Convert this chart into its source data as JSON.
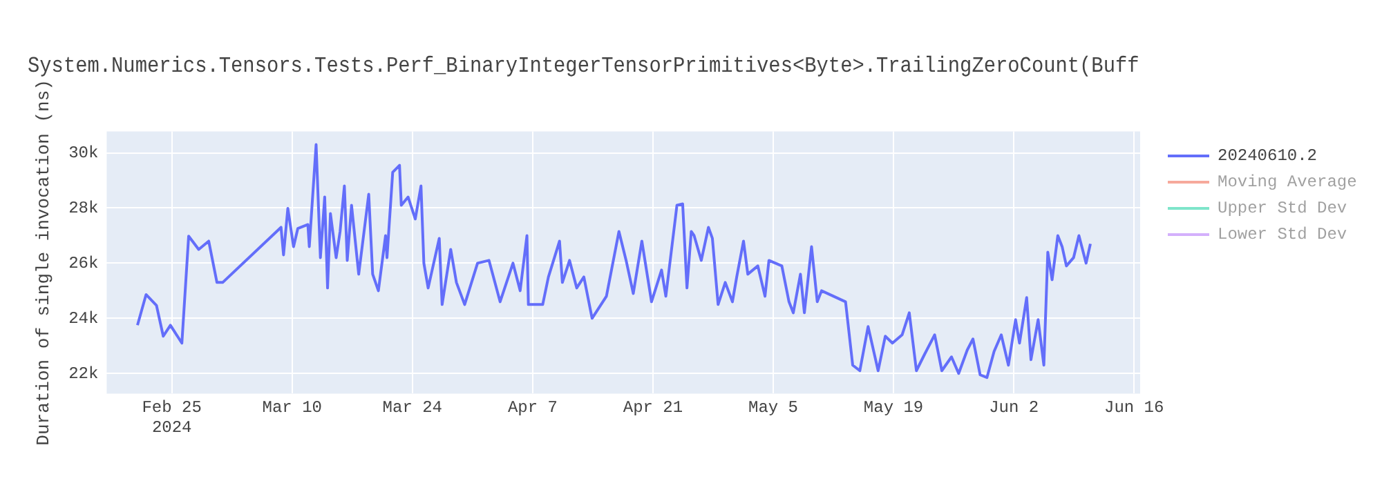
{
  "chart_data": {
    "type": "line",
    "title": "System.Numerics.Tensors.Tests.Perf_BinaryIntegerTensorPrimitives<Byte>.TrailingZeroCount(Buff",
    "ylabel": "Duration of single invocation (ns)",
    "x": [
      "2024-02-21T00:00",
      "2024-02-22T00:00",
      "2024-02-23T05:00",
      "2024-02-24T00:00",
      "2024-02-24T20:00",
      "2024-02-26T04:00",
      "2024-02-26T23:00",
      "2024-02-28T03:00",
      "2024-02-29T07:00",
      "2024-03-01T06:00",
      "2024-03-01T22:00",
      "2024-03-08T17:00",
      "2024-03-09T00:00",
      "2024-03-09T12:00",
      "2024-03-10T04:00",
      "2024-03-10T16:00",
      "2024-03-11T20:00",
      "2024-03-12T00:00",
      "2024-03-12T19:00",
      "2024-03-13T07:00",
      "2024-03-13T19:00",
      "2024-03-14T03:00",
      "2024-03-14T11:00",
      "2024-03-15T03:00",
      "2024-03-15T14:00",
      "2024-03-16T02:00",
      "2024-03-16T10:00",
      "2024-03-16T22:00",
      "2024-03-17T18:00",
      "2024-03-18T22:00",
      "2024-03-19T09:00",
      "2024-03-20T01:00",
      "2024-03-20T21:00",
      "2024-03-21T01:00",
      "2024-03-21T17:00",
      "2024-03-22T12:00",
      "2024-03-22T17:00",
      "2024-03-23T12:00",
      "2024-03-24T08:00",
      "2024-03-25T00:00",
      "2024-03-25T08:00",
      "2024-03-25T20:00",
      "2024-03-27T03:00",
      "2024-03-27T11:00",
      "2024-03-28T11:00",
      "2024-03-29T03:00",
      "2024-03-30T02:00",
      "2024-03-31T14:00",
      "2024-04-01T22:00",
      "2024-04-03T05:00",
      "2024-04-04T17:00",
      "2024-04-05T13:00",
      "2024-04-06T08:00",
      "2024-04-06T12:00",
      "2024-04-08T04:00",
      "2024-04-08T20:00",
      "2024-04-10T03:00",
      "2024-04-10T11:00",
      "2024-04-11T07:00",
      "2024-04-12T03:00",
      "2024-04-12T23:00",
      "2024-04-13T22:00",
      "2024-04-15T14:00",
      "2024-04-17T01:00",
      "2024-04-17T21:00",
      "2024-04-18T17:00",
      "2024-04-19T17:00",
      "2024-04-20T20:00",
      "2024-04-22T00:00",
      "2024-04-22T12:00",
      "2024-04-23T19:00",
      "2024-04-24T11:00",
      "2024-04-24T23:00",
      "2024-04-25T11:00",
      "2024-04-25T19:00",
      "2024-04-26T15:00",
      "2024-04-27T11:00",
      "2024-04-27T22:00",
      "2024-04-28T14:00",
      "2024-04-29T10:00",
      "2024-04-30T06:00",
      "2024-04-30T18:00",
      "2024-05-01T13:00",
      "2024-05-02T01:00",
      "2024-05-03T05:00",
      "2024-05-04T01:00",
      "2024-05-04T12:00",
      "2024-05-06T00:00",
      "2024-05-06T20:00",
      "2024-05-07T08:00",
      "2024-05-08T04:00",
      "2024-05-08T15:00",
      "2024-05-09T11:00",
      "2024-05-10T03:00",
      "2024-05-10T15:00",
      "2024-05-13T10:00",
      "2024-05-14T06:00",
      "2024-05-15T02:00",
      "2024-05-16T01:00",
      "2024-05-17T05:00",
      "2024-05-18T01:00",
      "2024-05-18T21:00",
      "2024-05-20T00:00",
      "2024-05-20T20:00",
      "2024-05-21T16:00",
      "2024-05-22T15:00",
      "2024-05-23T19:00",
      "2024-05-24T15:00",
      "2024-05-25T18:00",
      "2024-05-26T14:00",
      "2024-05-27T14:00",
      "2024-05-28T06:00",
      "2024-05-29T02:00",
      "2024-05-29T21:00",
      "2024-05-30T17:00",
      "2024-05-31T13:00",
      "2024-06-01T09:00",
      "2024-06-02T05:00",
      "2024-06-02T16:00",
      "2024-06-03T12:00",
      "2024-06-04T00:00",
      "2024-06-04T20:00",
      "2024-06-05T12:00",
      "2024-06-05T23:00",
      "2024-06-06T11:00",
      "2024-06-07T03:00",
      "2024-06-07T15:00",
      "2024-06-08T03:00",
      "2024-06-08T23:00",
      "2024-06-09T14:00",
      "2024-06-10T10:00",
      "2024-06-10T22:00"
    ],
    "series": [
      {
        "name": "20240610.2",
        "color": "#636efa",
        "values": [
          23750,
          24860,
          24470,
          23350,
          23750,
          23100,
          26980,
          26500,
          26800,
          25300,
          25300,
          27300,
          26300,
          27990,
          26600,
          27260,
          27400,
          26600,
          30300,
          26200,
          28400,
          25100,
          27800,
          26200,
          27150,
          28800,
          26100,
          28100,
          25600,
          28500,
          25600,
          25000,
          27000,
          26200,
          29300,
          29550,
          28100,
          28400,
          27600,
          28800,
          26000,
          25100,
          26900,
          24500,
          26500,
          25300,
          24500,
          26000,
          26100,
          24600,
          26000,
          25000,
          27000,
          24500,
          24500,
          25500,
          26800,
          25300,
          26100,
          25100,
          25500,
          24000,
          24800,
          27150,
          26100,
          24900,
          26800,
          24600,
          25750,
          24800,
          28100,
          28150,
          25100,
          27150,
          27000,
          26100,
          27300,
          26900,
          24500,
          25300,
          24600,
          25500,
          26800,
          25600,
          25900,
          24800,
          26100,
          25900,
          24600,
          24200,
          25600,
          24200,
          26600,
          24600,
          25000,
          24600,
          22300,
          22100,
          23700,
          22100,
          23350,
          23100,
          23400,
          24200,
          22100,
          22700,
          23400,
          22100,
          22600,
          22000,
          22850,
          23250,
          21950,
          21850,
          22800,
          23400,
          22300,
          23950,
          23100,
          24750,
          22500,
          23950,
          22300,
          26400,
          25400,
          27000,
          26600,
          25900,
          26200,
          27000,
          26000,
          26700
        ]
      },
      {
        "name": "Moving Average",
        "color": "#ef553b",
        "values": [
          null,
          null,
          null,
          null,
          null,
          null,
          null,
          null,
          null,
          null,
          null,
          null,
          null,
          null,
          null,
          null,
          null,
          null,
          null,
          null,
          null,
          null,
          null,
          null,
          null,
          null,
          null,
          null,
          null,
          null,
          null,
          null,
          null,
          null,
          null,
          null,
          null,
          null,
          null,
          null,
          null,
          null,
          null,
          null,
          null,
          null,
          null,
          null,
          null,
          null,
          null,
          null,
          null,
          null,
          null,
          null,
          null,
          null,
          null,
          null,
          null,
          null,
          null,
          null,
          null,
          null,
          null,
          null,
          null,
          null,
          null,
          null,
          null,
          null,
          null,
          null,
          null,
          null,
          null,
          null,
          null,
          null,
          null,
          null,
          null,
          null,
          null,
          null,
          null,
          null,
          null,
          null,
          null,
          null,
          null,
          null,
          null,
          null,
          null,
          null,
          null,
          null,
          null,
          null,
          null,
          null,
          null,
          null,
          null,
          null,
          null,
          null,
          null,
          null,
          null,
          null,
          null,
          null,
          null,
          null,
          null,
          null,
          null,
          null,
          null,
          null,
          null,
          null,
          null,
          null,
          null,
          null
        ]
      },
      {
        "name": "Upper Std Dev",
        "color": "#00cc96",
        "values": [
          null,
          null,
          null,
          null,
          null,
          null,
          null,
          null,
          null,
          null,
          null,
          null,
          null,
          null,
          null,
          null,
          null,
          null,
          null,
          null,
          null,
          null,
          null,
          null,
          null,
          null,
          null,
          null,
          null,
          null,
          null,
          null,
          null,
          null,
          null,
          null,
          null,
          null,
          null,
          null,
          null,
          null,
          null,
          null,
          null,
          null,
          null,
          null,
          null,
          null,
          null,
          null,
          null,
          null,
          null,
          null,
          null,
          null,
          null,
          null,
          null,
          null,
          null,
          null,
          null,
          null,
          null,
          null,
          null,
          null,
          null,
          null,
          null,
          null,
          null,
          null,
          null,
          null,
          null,
          null,
          null,
          null,
          null,
          null,
          null,
          null,
          null,
          null,
          null,
          null,
          null,
          null,
          null,
          null,
          null,
          null,
          null,
          null,
          null,
          null,
          null,
          null,
          null,
          null,
          null,
          null,
          null,
          null,
          null,
          null,
          null,
          null,
          null,
          null,
          null,
          null,
          null,
          null,
          null,
          null,
          null,
          null,
          null,
          null,
          null,
          null,
          null,
          null,
          null,
          null,
          null,
          null
        ]
      },
      {
        "name": "Lower Std Dev",
        "color": "#ab63fa",
        "values": [
          null,
          null,
          null,
          null,
          null,
          null,
          null,
          null,
          null,
          null,
          null,
          null,
          null,
          null,
          null,
          null,
          null,
          null,
          null,
          null,
          null,
          null,
          null,
          null,
          null,
          null,
          null,
          null,
          null,
          null,
          null,
          null,
          null,
          null,
          null,
          null,
          null,
          null,
          null,
          null,
          null,
          null,
          null,
          null,
          null,
          null,
          null,
          null,
          null,
          null,
          null,
          null,
          null,
          null,
          null,
          null,
          null,
          null,
          null,
          null,
          null,
          null,
          null,
          null,
          null,
          null,
          null,
          null,
          null,
          null,
          null,
          null,
          null,
          null,
          null,
          null,
          null,
          null,
          null,
          null,
          null,
          null,
          null,
          null,
          null,
          null,
          null,
          null,
          null,
          null,
          null,
          null,
          null,
          null,
          null,
          null,
          null,
          null,
          null,
          null,
          null,
          null,
          null,
          null,
          null,
          null,
          null,
          null,
          null,
          null,
          null,
          null,
          null,
          null,
          null,
          null,
          null,
          null,
          null,
          null,
          null,
          null,
          null,
          null,
          null,
          null,
          null,
          null,
          null,
          null,
          null,
          null
        ]
      }
    ],
    "xlim": [
      "2024-02-17T10:00",
      "2024-06-16T17:00"
    ],
    "xticks": [
      {
        "value": "2024-02-25",
        "label": "Feb 25\n2024"
      },
      {
        "value": "2024-03-10",
        "label": "Mar 10"
      },
      {
        "value": "2024-03-24",
        "label": "Mar 24"
      },
      {
        "value": "2024-04-07",
        "label": "Apr 7"
      },
      {
        "value": "2024-04-21",
        "label": "Apr 21"
      },
      {
        "value": "2024-05-05",
        "label": "May 5"
      },
      {
        "value": "2024-05-19",
        "label": "May 19"
      },
      {
        "value": "2024-06-02",
        "label": "Jun 2"
      },
      {
        "value": "2024-06-16",
        "label": "Jun 16"
      }
    ],
    "ylim": [
      21270,
      30780
    ],
    "yticks": [
      {
        "value": 22000,
        "label": "22k"
      },
      {
        "value": 24000,
        "label": "24k"
      },
      {
        "value": 26000,
        "label": "26k"
      },
      {
        "value": 28000,
        "label": "28k"
      },
      {
        "value": 30000,
        "label": "30k"
      }
    ],
    "grid": true,
    "legend": "top right",
    "marker": "none",
    "line_style": "solid"
  }
}
